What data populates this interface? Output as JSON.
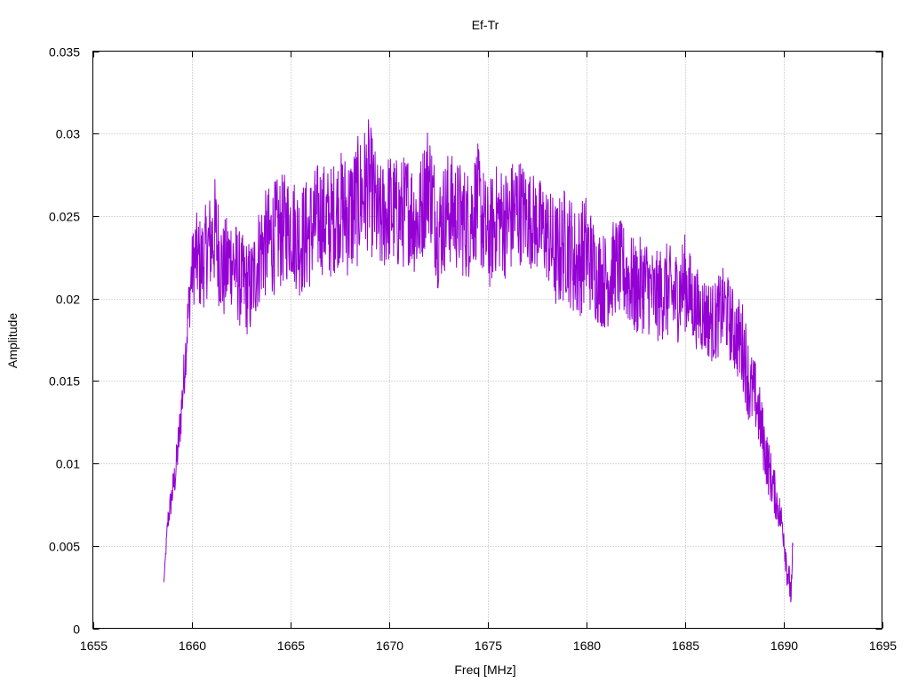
{
  "chart_data": {
    "type": "line",
    "title": "Ef-Tr",
    "xlabel": "Freq [MHz]",
    "ylabel": "Amplitude",
    "xlim": [
      1655,
      1695
    ],
    "ylim": [
      0,
      0.035
    ],
    "grid": true,
    "x_ticks": [
      1655,
      1660,
      1665,
      1670,
      1675,
      1680,
      1685,
      1690,
      1695
    ],
    "x_tick_labels": [
      "1655",
      "1660",
      "1665",
      "1670",
      "1675",
      "1680",
      "1685",
      "1690",
      "1695"
    ],
    "y_ticks": [
      0,
      0.005,
      0.01,
      0.015,
      0.02,
      0.025,
      0.03,
      0.035
    ],
    "y_tick_labels": [
      "0",
      "0.005",
      "0.01",
      "0.015",
      "0.02",
      "0.025",
      "0.03",
      "0.035"
    ],
    "series": [
      {
        "color": "#9400d3",
        "x": [
          1658.6,
          1658.8,
          1659.0,
          1659.2,
          1659.4,
          1659.6,
          1659.8,
          1660.0,
          1660.2,
          1660.5,
          1660.8,
          1661.2,
          1661.6,
          1662.0,
          1662.5,
          1663.0,
          1663.5,
          1664.0,
          1664.5,
          1665.0,
          1665.5,
          1666.0,
          1666.5,
          1667.0,
          1667.5,
          1668.0,
          1668.5,
          1669.0,
          1669.5,
          1670.0,
          1670.5,
          1671.0,
          1671.5,
          1672.0,
          1672.5,
          1673.0,
          1673.5,
          1674.0,
          1674.5,
          1675.0,
          1675.5,
          1676.0,
          1676.5,
          1677.0,
          1677.5,
          1678.0,
          1678.5,
          1679.0,
          1679.5,
          1680.0,
          1680.5,
          1681.0,
          1681.5,
          1682.0,
          1682.5,
          1683.0,
          1683.5,
          1684.0,
          1684.5,
          1685.0,
          1685.5,
          1686.0,
          1686.5,
          1687.0,
          1687.5,
          1688.0,
          1688.3,
          1688.6,
          1688.9,
          1689.2,
          1689.5,
          1689.8,
          1690.0,
          1690.2,
          1690.4,
          1690.5
        ],
        "y": [
          0.0028,
          0.0065,
          0.008,
          0.0095,
          0.012,
          0.015,
          0.0185,
          0.0215,
          0.0225,
          0.022,
          0.023,
          0.024,
          0.0215,
          0.0225,
          0.021,
          0.0205,
          0.023,
          0.0235,
          0.024,
          0.0245,
          0.0235,
          0.024,
          0.025,
          0.0245,
          0.0255,
          0.025,
          0.026,
          0.027,
          0.0245,
          0.0255,
          0.025,
          0.0255,
          0.0245,
          0.0275,
          0.024,
          0.0255,
          0.025,
          0.0245,
          0.026,
          0.0235,
          0.025,
          0.0245,
          0.0255,
          0.025,
          0.0245,
          0.024,
          0.0225,
          0.0235,
          0.022,
          0.023,
          0.0215,
          0.021,
          0.022,
          0.0215,
          0.0205,
          0.021,
          0.02,
          0.0205,
          0.02,
          0.021,
          0.0195,
          0.019,
          0.0185,
          0.0195,
          0.018,
          0.017,
          0.0145,
          0.014,
          0.012,
          0.01,
          0.0085,
          0.007,
          0.006,
          0.0035,
          0.002,
          0.0045
        ],
        "noise": [
          0,
          0.0008,
          0.001,
          0.0012,
          0.0015,
          0.0016,
          0.0018,
          0.0022,
          0.0028,
          0.003,
          0.003,
          0.0035,
          0.0032,
          0.003,
          0.003,
          0.003,
          0.0032,
          0.0035,
          0.0035,
          0.0033,
          0.0035,
          0.0035,
          0.0035,
          0.0035,
          0.0035,
          0.004,
          0.004,
          0.004,
          0.0035,
          0.0035,
          0.0035,
          0.0035,
          0.0035,
          0.0035,
          0.0035,
          0.0035,
          0.0035,
          0.0035,
          0.0035,
          0.0035,
          0.0033,
          0.0035,
          0.0035,
          0.003,
          0.003,
          0.003,
          0.0035,
          0.0035,
          0.0035,
          0.0035,
          0.003,
          0.003,
          0.003,
          0.003,
          0.003,
          0.003,
          0.0028,
          0.003,
          0.003,
          0.003,
          0.0025,
          0.0025,
          0.0025,
          0.0025,
          0.0025,
          0.0028,
          0.0025,
          0.0022,
          0.002,
          0.0018,
          0.0015,
          0.0012,
          0.0012,
          0.0012,
          0.001,
          0.002
        ]
      }
    ]
  }
}
